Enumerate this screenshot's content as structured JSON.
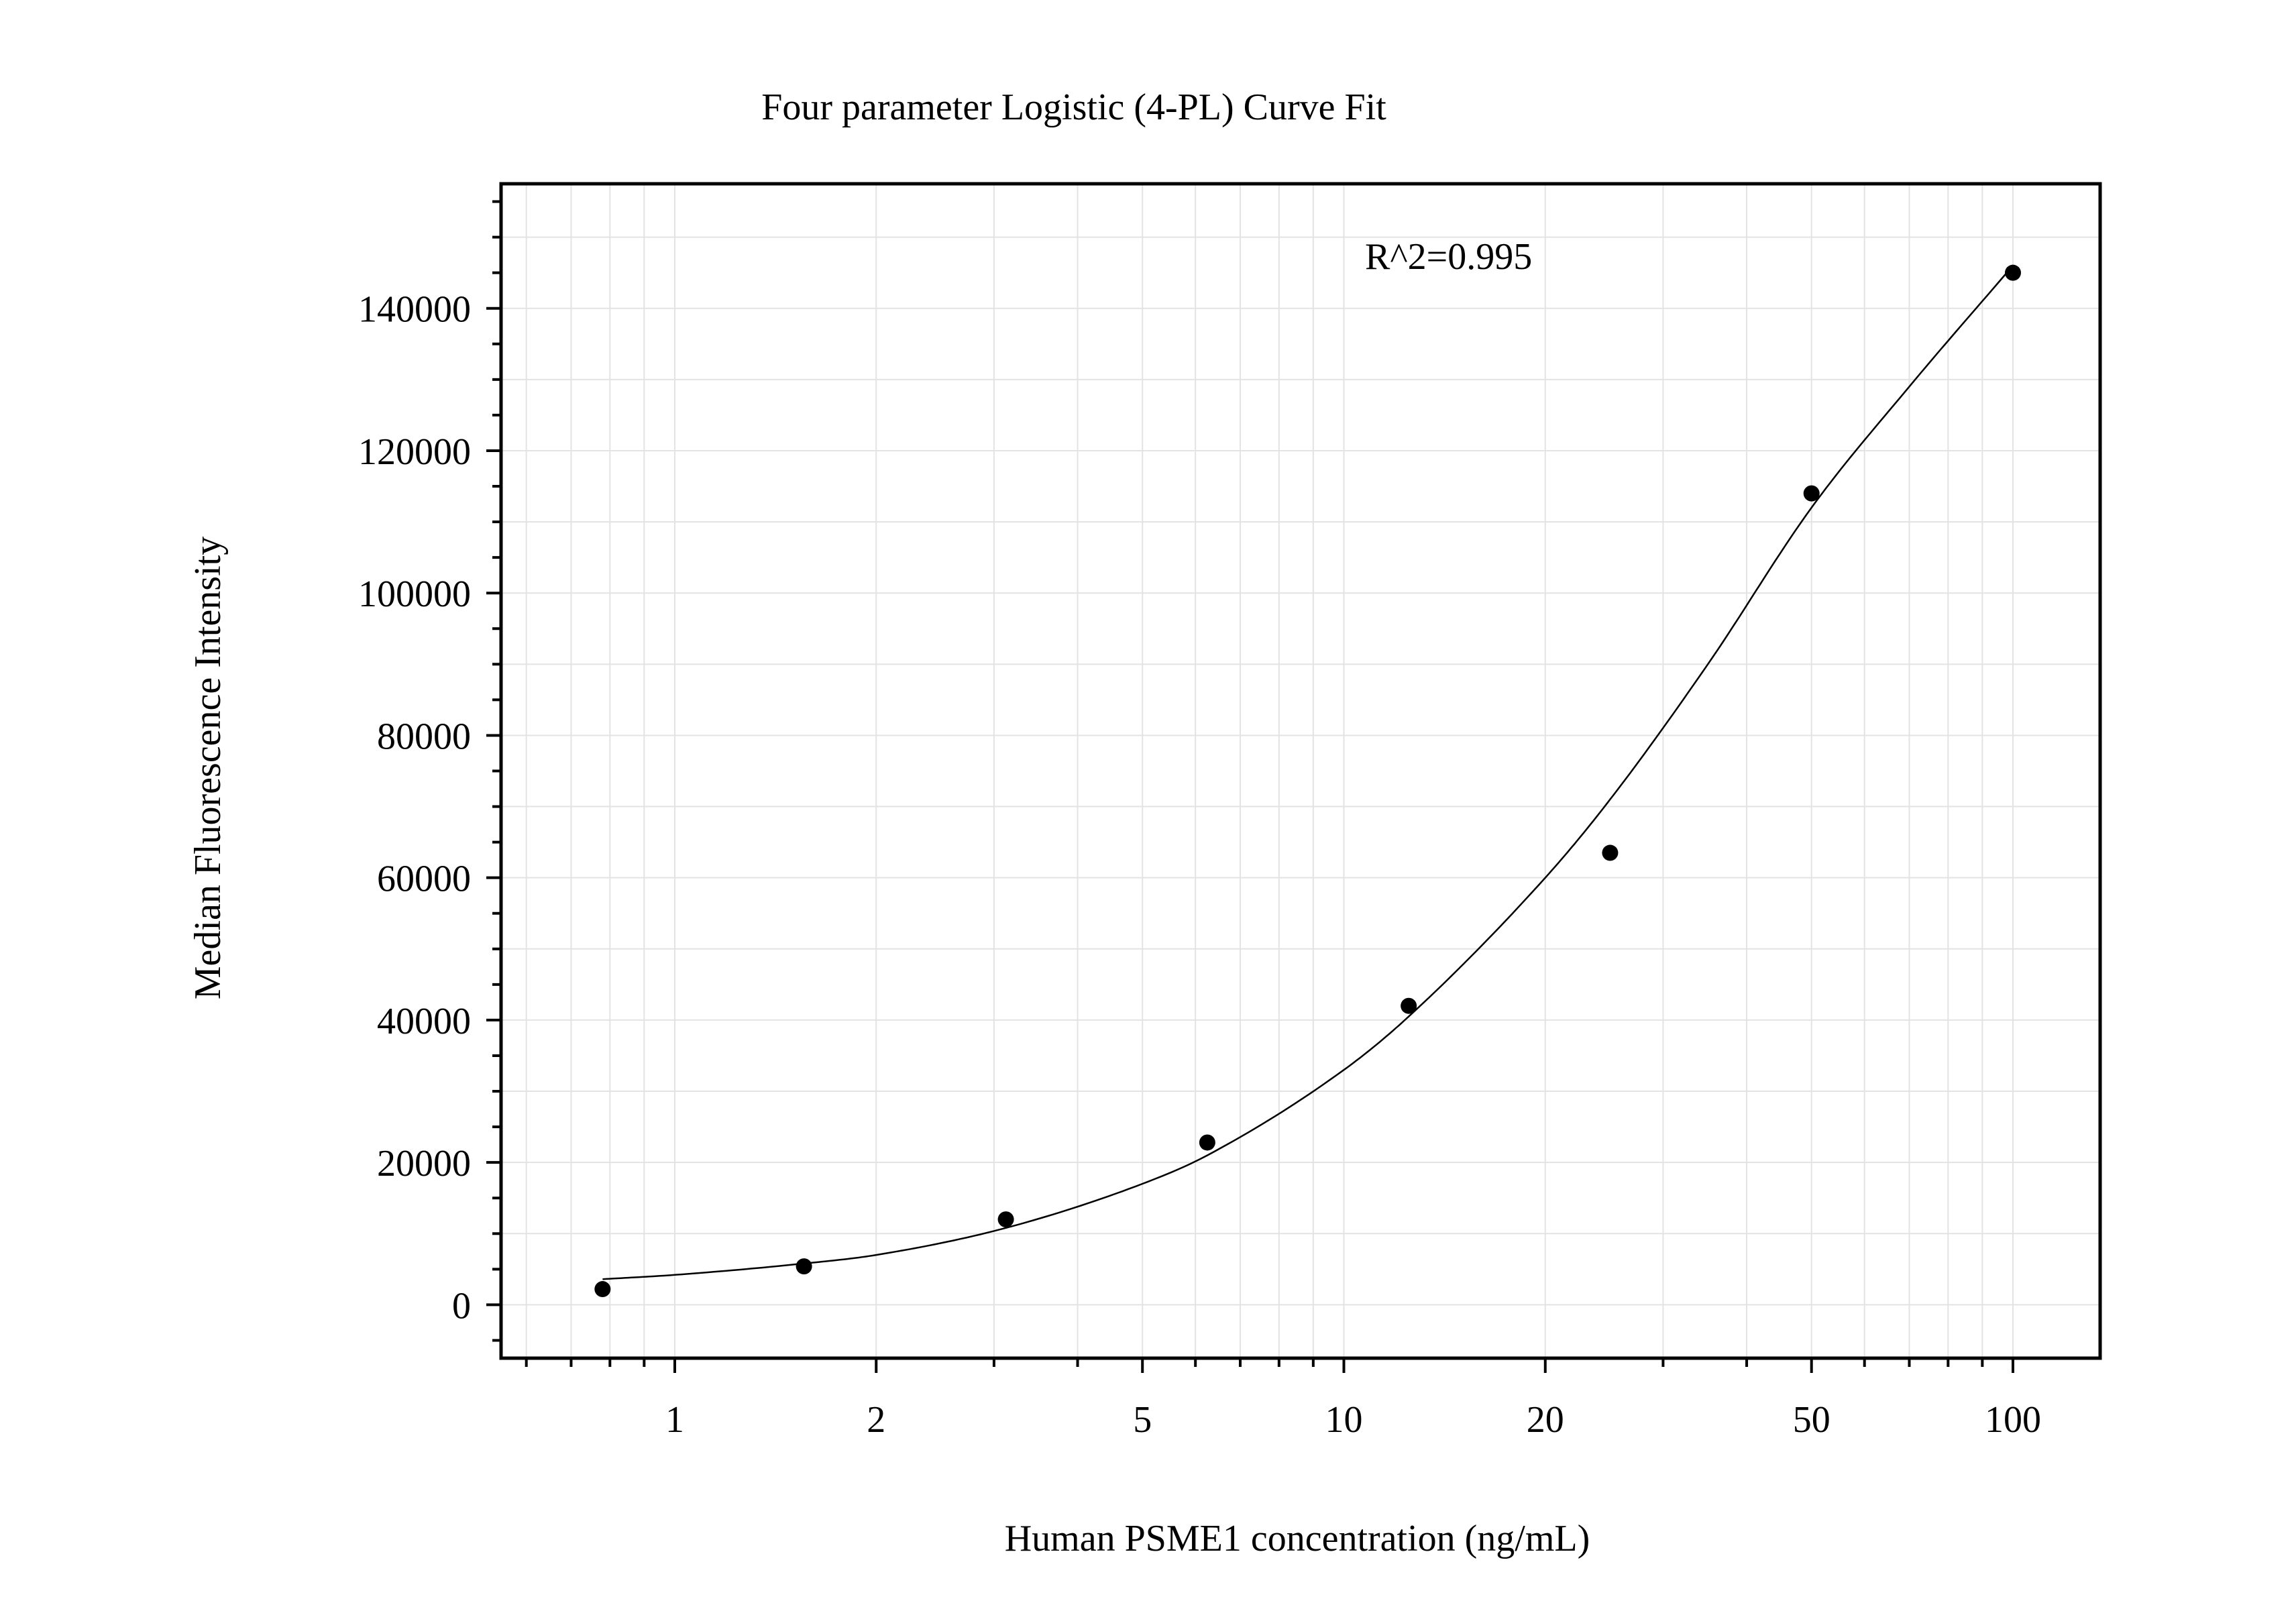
{
  "chart_data": {
    "type": "scatter",
    "title": "Four parameter Logistic (4-PL) Curve Fit",
    "xlabel": "Human PSME1 concentration (ng/mL)",
    "ylabel": "Median Fluorescence Intensity",
    "x_scale": "log",
    "xlim": [
      0.55,
      135
    ],
    "ylim": [
      -7500,
      157500
    ],
    "x_ticks": [
      1,
      2,
      5,
      10,
      20,
      50,
      100
    ],
    "x_tick_labels": [
      "1",
      "2",
      "5",
      "10",
      "20",
      "50",
      "100"
    ],
    "y_ticks": [
      0,
      20000,
      40000,
      60000,
      80000,
      100000,
      120000,
      140000
    ],
    "y_tick_labels": [
      "0",
      "20000",
      "40000",
      "60000",
      "80000",
      "100000",
      "120000",
      "140000"
    ],
    "grid": true,
    "annotation": "R^2=0.995",
    "series": [
      {
        "kind": "points",
        "x": [
          0.78,
          1.56,
          3.125,
          6.25,
          12.5,
          25,
          50,
          100
        ],
        "y": [
          2200,
          5400,
          12000,
          22800,
          42000,
          63500,
          114000,
          145000
        ]
      },
      {
        "kind": "fit-curve",
        "x": [
          0.78,
          1,
          1.56,
          2,
          3.125,
          5,
          6.25,
          10,
          12.5,
          20,
          25,
          35,
          50,
          70,
          100
        ],
        "y": [
          3600,
          4200,
          5800,
          7000,
          10800,
          17000,
          21000,
          33000,
          40500,
          60000,
          71000,
          90000,
          112000,
          129000,
          146000
        ]
      }
    ],
    "colors": {
      "points": "#000000",
      "curve": "#000000",
      "grid": "#e3e3e3",
      "frame": "#000000"
    }
  }
}
